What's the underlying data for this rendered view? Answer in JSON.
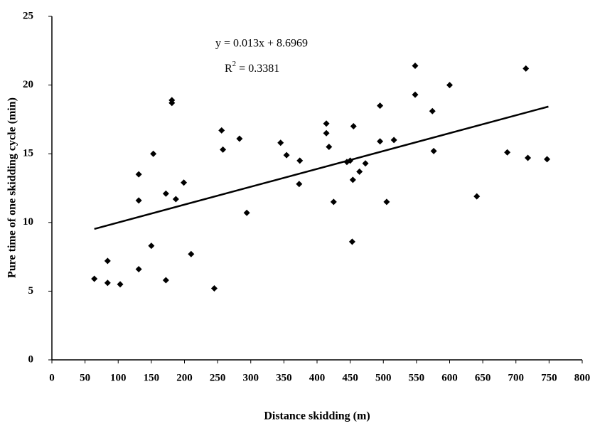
{
  "chart_data": {
    "type": "scatter",
    "x_label": "Distance skidding (m)",
    "y_label": "Pure time of one skidding cycle (min)",
    "equation": "y = 0.013x + 8.6969",
    "r2": {
      "symbol": "R",
      "power": "2",
      "text": " = 0.3381"
    },
    "trendline": {
      "slope": 0.013,
      "intercept": 8.6969,
      "x": [
        64,
        749
      ]
    },
    "color": "#000000",
    "x": [
      64,
      84,
      84,
      103,
      131,
      131,
      131,
      153,
      150,
      172,
      172,
      181,
      181,
      187,
      199,
      210,
      245,
      256,
      258,
      283,
      294,
      345,
      354,
      373,
      374,
      414,
      414,
      418,
      425,
      445,
      450,
      455,
      454,
      453,
      464,
      473,
      495,
      495,
      505,
      516,
      548,
      548,
      574,
      576,
      600,
      641,
      687,
      715,
      718,
      747
    ],
    "values": [
      5.9,
      7.2,
      5.6,
      5.5,
      13.5,
      11.6,
      6.6,
      15.0,
      8.3,
      12.1,
      5.8,
      18.9,
      18.7,
      11.7,
      12.9,
      7.7,
      5.2,
      16.7,
      15.3,
      16.1,
      10.7,
      15.8,
      14.9,
      12.8,
      14.5,
      17.2,
      16.5,
      15.5,
      11.5,
      14.4,
      14.5,
      17.0,
      13.1,
      8.6,
      13.7,
      14.3,
      18.5,
      15.9,
      11.5,
      16.0,
      21.4,
      19.3,
      18.1,
      15.2,
      20.0,
      11.9,
      15.1,
      21.2,
      14.7,
      14.6
    ],
    "xlim": [
      0,
      800
    ],
    "xticks": [
      0,
      50,
      100,
      150,
      200,
      250,
      300,
      350,
      400,
      450,
      500,
      550,
      600,
      650,
      700,
      750,
      800
    ],
    "ylim": [
      0,
      25
    ],
    "yticks": [
      0,
      5,
      10,
      15,
      20,
      25
    ]
  }
}
